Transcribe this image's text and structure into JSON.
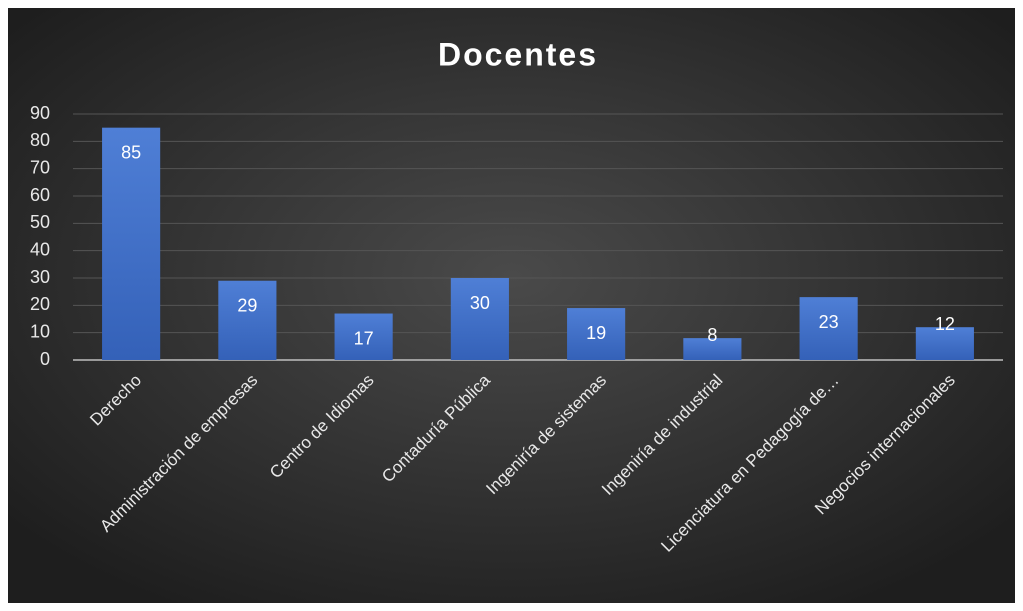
{
  "chart_data": {
    "type": "bar",
    "title": "Docentes",
    "categories": [
      "Derecho",
      "Administración de empresas",
      "Centro de Idiomas",
      "Contaduría Pública",
      "Ingeniría de sistemas",
      "Ingeniría de industrial",
      "Licenciatura en Pedagogía de…",
      "Negocios internacionales"
    ],
    "values": [
      85,
      29,
      17,
      30,
      19,
      8,
      23,
      12
    ],
    "color": "#4472c4",
    "ylim": [
      0,
      90
    ],
    "yticks": [
      0,
      10,
      20,
      30,
      40,
      50,
      60,
      70,
      80,
      90
    ],
    "grid": true
  }
}
